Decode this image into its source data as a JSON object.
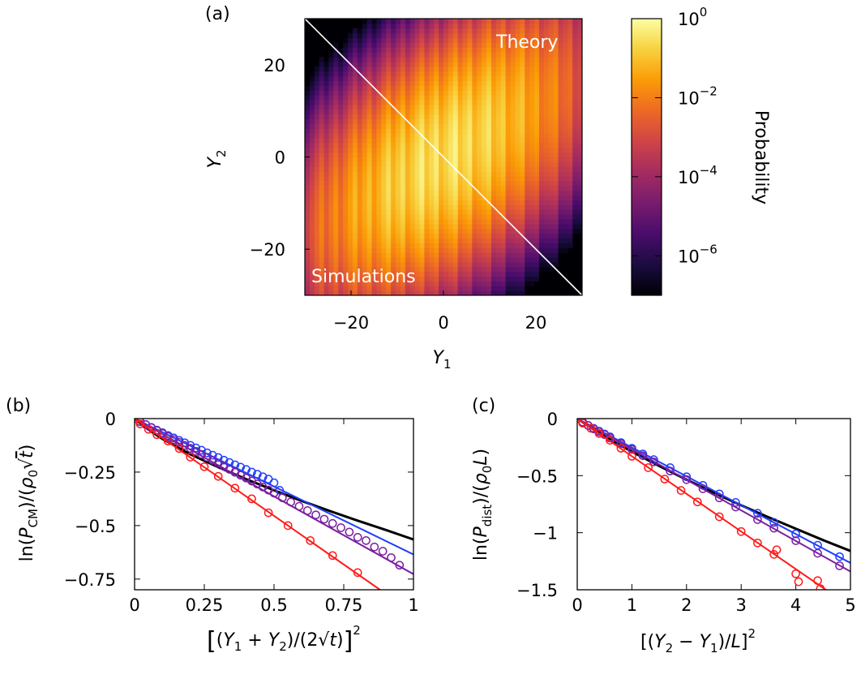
{
  "figure": {
    "panel_labels": [
      "(a)",
      "(b)",
      "(c)"
    ]
  },
  "chart_data": [
    {
      "id": "a",
      "type": "heatmap",
      "panel_label": "(a)",
      "xlabel": "Y1",
      "ylabel": "Y2",
      "xlim": [
        -30,
        30
      ],
      "ylim": [
        -30,
        30
      ],
      "xticks": [
        -20,
        0,
        20
      ],
      "yticks": [
        -20,
        0,
        20
      ],
      "xtick_labels": [
        "−20",
        "0",
        "20"
      ],
      "ytick_labels": [
        "−20",
        "0",
        "20"
      ],
      "annotations": [
        "Theory",
        "Simulations"
      ],
      "diagonal": "top-left to bottom-right",
      "distribution": {
        "center": [
          0,
          0
        ],
        "major_axis_angle_deg": 45,
        "scale": "log",
        "orientation": "correlated"
      },
      "colorbar": {
        "label": "Probability",
        "scale": "log",
        "range": [
          1e-07,
          1
        ],
        "ticks": [
          1,
          0.01,
          0.0001,
          1e-06
        ],
        "tick_labels": [
          {
            "base": "10",
            "exp": "0"
          },
          {
            "base": "10",
            "exp": "−2"
          },
          {
            "base": "10",
            "exp": "−4"
          },
          {
            "base": "10",
            "exp": "−6"
          }
        ],
        "colormap": [
          "#000004",
          "#1b0c41",
          "#4a0c6b",
          "#781c6d",
          "#a52c60",
          "#cf4446",
          "#ed6925",
          "#fb9b06",
          "#f7d13d",
          "#fcffa4"
        ]
      }
    },
    {
      "id": "b",
      "type": "line",
      "panel_label": "(b)",
      "xlim": [
        0,
        1
      ],
      "ylim": [
        -0.8,
        0
      ],
      "xticks": [
        0,
        0.25,
        0.5,
        0.75,
        1
      ],
      "yticks": [
        0,
        -0.25,
        -0.5,
        -0.75
      ],
      "xtick_labels": [
        "0",
        "0.25",
        "0.5",
        "0.75",
        "1"
      ],
      "ytick_labels": [
        "0",
        "−0.25",
        "−0.5",
        "−0.75"
      ],
      "series": [
        {
          "color": "#000000",
          "line": {
            "x": [
              0,
              0.05,
              0.1,
              0.2,
              0.3,
              0.4,
              0.5,
              0.6,
              0.7,
              0.8,
              0.9,
              1.0
            ],
            "y": [
              0,
              -0.052,
              -0.095,
              -0.167,
              -0.227,
              -0.283,
              -0.335,
              -0.385,
              -0.432,
              -0.477,
              -0.52,
              -0.565
            ]
          }
        },
        {
          "color": "#1f3fff",
          "line": {
            "x": [
              0,
              1.0
            ],
            "y": [
              0,
              -0.635
            ]
          },
          "points": {
            "x": [
              0,
              0.02,
              0.04,
              0.06,
              0.08,
              0.1,
              0.12,
              0.14,
              0.16,
              0.18,
              0.2,
              0.22,
              0.24,
              0.26,
              0.28,
              0.3,
              0.32,
              0.34,
              0.36,
              0.38,
              0.4,
              0.42,
              0.44,
              0.46,
              0.48,
              0.5,
              0.52
            ],
            "y": [
              0,
              -0.015,
              -0.028,
              -0.041,
              -0.054,
              -0.066,
              -0.079,
              -0.09,
              -0.102,
              -0.113,
              -0.125,
              -0.137,
              -0.148,
              -0.16,
              -0.171,
              -0.182,
              -0.194,
              -0.205,
              -0.216,
              -0.227,
              -0.238,
              -0.25,
              -0.26,
              -0.272,
              -0.283,
              -0.3,
              -0.335
            ]
          }
        },
        {
          "color": "#7a1fa0",
          "line": {
            "x": [
              0,
              1.0
            ],
            "y": [
              0,
              -0.727
            ]
          },
          "points": {
            "x": [
              0,
              0.02,
              0.04,
              0.06,
              0.08,
              0.1,
              0.12,
              0.14,
              0.16,
              0.18,
              0.2,
              0.22,
              0.24,
              0.26,
              0.28,
              0.3,
              0.32,
              0.34,
              0.36,
              0.38,
              0.4,
              0.42,
              0.44,
              0.46,
              0.48,
              0.5,
              0.53,
              0.56,
              0.59,
              0.62,
              0.65,
              0.68,
              0.71,
              0.74,
              0.77,
              0.8,
              0.83,
              0.86,
              0.89,
              0.92,
              0.95
            ],
            "y": [
              0,
              -0.014,
              -0.028,
              -0.042,
              -0.056,
              -0.07,
              -0.084,
              -0.098,
              -0.111,
              -0.125,
              -0.139,
              -0.153,
              -0.167,
              -0.181,
              -0.195,
              -0.209,
              -0.223,
              -0.237,
              -0.251,
              -0.265,
              -0.278,
              -0.292,
              -0.306,
              -0.32,
              -0.334,
              -0.348,
              -0.37,
              -0.39,
              -0.41,
              -0.43,
              -0.45,
              -0.47,
              -0.49,
              -0.51,
              -0.53,
              -0.555,
              -0.57,
              -0.6,
              -0.62,
              -0.65,
              -0.685
            ]
          }
        },
        {
          "color": "#ff1a1a",
          "line": {
            "x": [
              0,
              0.88
            ],
            "y": [
              0,
              -0.8
            ]
          },
          "points": {
            "x": [
              0,
              0.02,
              0.05,
              0.08,
              0.12,
              0.16,
              0.2,
              0.25,
              0.3,
              0.36,
              0.42,
              0.48,
              0.55,
              0.63,
              0.71,
              0.8
            ],
            "y": [
              0,
              -0.025,
              -0.05,
              -0.075,
              -0.105,
              -0.14,
              -0.18,
              -0.225,
              -0.27,
              -0.325,
              -0.375,
              -0.44,
              -0.5,
              -0.57,
              -0.64,
              -0.72
            ]
          }
        }
      ]
    },
    {
      "id": "c",
      "type": "line",
      "panel_label": "(c)",
      "xlim": [
        0,
        5
      ],
      "ylim": [
        -1.5,
        0
      ],
      "xticks": [
        0,
        1,
        2,
        3,
        4,
        5
      ],
      "yticks": [
        0,
        -0.5,
        -1,
        -1.5
      ],
      "xtick_labels": [
        "0",
        "1",
        "2",
        "3",
        "4",
        "5"
      ],
      "ytick_labels": [
        "0",
        "−0.5",
        "−1",
        "−1.5"
      ],
      "series": [
        {
          "color": "#000000",
          "line": {
            "x": [
              0,
              0.25,
              0.5,
              1,
              1.5,
              2,
              2.5,
              3,
              3.5,
              4,
              4.5,
              5
            ],
            "y": [
              0,
              -0.08,
              -0.155,
              -0.29,
              -0.415,
              -0.535,
              -0.65,
              -0.76,
              -0.865,
              -0.965,
              -1.065,
              -1.16
            ]
          }
        },
        {
          "color": "#1f3fff",
          "line": {
            "x": [
              0,
              5
            ],
            "y": [
              0,
              -1.265
            ]
          },
          "points": {
            "x": [
              0,
              0.1,
              0.2,
              0.3,
              0.4,
              0.5,
              0.6,
              0.8,
              1.0,
              1.2,
              1.4,
              1.7,
              2.0,
              2.3,
              2.6,
              2.9,
              3.3,
              3.6,
              4.0,
              4.4,
              4.8
            ],
            "y": [
              0,
              -0.03,
              -0.06,
              -0.085,
              -0.11,
              -0.135,
              -0.16,
              -0.21,
              -0.26,
              -0.31,
              -0.36,
              -0.43,
              -0.51,
              -0.585,
              -0.66,
              -0.735,
              -0.83,
              -0.91,
              -1.01,
              -1.11,
              -1.21
            ]
          }
        },
        {
          "color": "#7a1fa0",
          "line": {
            "x": [
              0,
              5
            ],
            "y": [
              0,
              -1.34
            ]
          },
          "points": {
            "x": [
              0,
              0.1,
              0.2,
              0.3,
              0.4,
              0.5,
              0.6,
              0.8,
              1.0,
              1.2,
              1.4,
              1.7,
              2.0,
              2.3,
              2.6,
              2.9,
              3.3,
              3.6,
              4.0,
              4.4,
              4.8
            ],
            "y": [
              0,
              -0.03,
              -0.06,
              -0.09,
              -0.115,
              -0.14,
              -0.17,
              -0.22,
              -0.27,
              -0.325,
              -0.38,
              -0.46,
              -0.535,
              -0.615,
              -0.695,
              -0.775,
              -0.885,
              -0.96,
              -1.07,
              -1.18,
              -1.29
            ]
          }
        },
        {
          "color": "#ff1a1a",
          "line": {
            "x": [
              0,
              4.55
            ],
            "y": [
              0,
              -1.5
            ]
          },
          "points": {
            "x": [
              0,
              0.1,
              0.25,
              0.4,
              0.6,
              0.8,
              1.0,
              1.3,
              1.6,
              1.9,
              2.2,
              2.6,
              3.0,
              3.3,
              3.6,
              3.65,
              4.0,
              4.05,
              4.4,
              4.45
            ],
            "y": [
              0,
              -0.04,
              -0.085,
              -0.13,
              -0.19,
              -0.26,
              -0.33,
              -0.43,
              -0.53,
              -0.63,
              -0.73,
              -0.86,
              -0.99,
              -1.09,
              -1.19,
              -1.15,
              -1.36,
              -1.43,
              -1.42,
              -1.49
            ]
          }
        }
      ]
    }
  ]
}
